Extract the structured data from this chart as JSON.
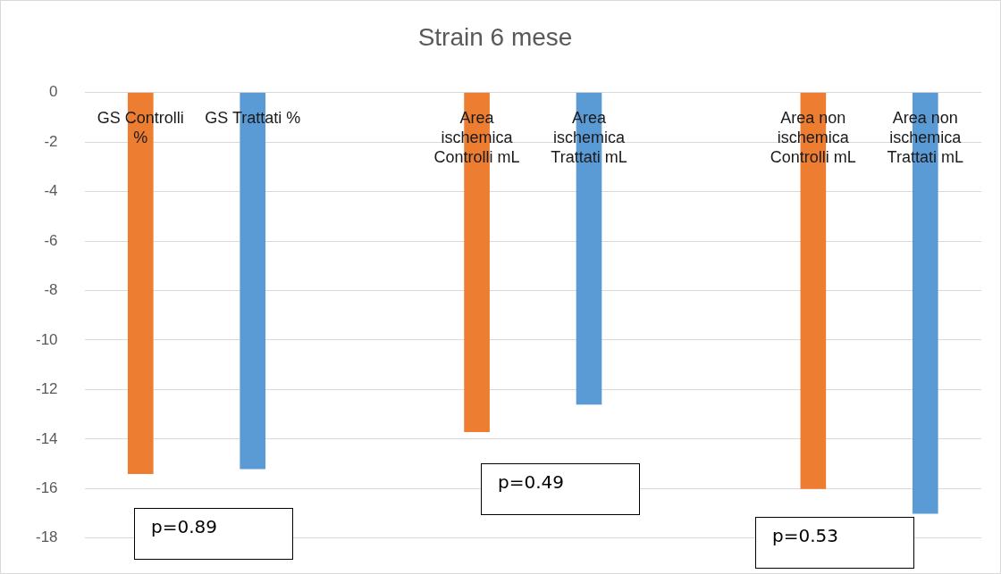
{
  "chart_data": {
    "type": "bar",
    "title": "Strain 6 mese",
    "categories": [
      "GS Controlli %",
      "GS Trattati %",
      null,
      "Area ischemica Controlli mL",
      "Area ischemica Trattati mL",
      null,
      "Area non ischemica Controlli mL",
      "Area non ischemica Trattati mL"
    ],
    "values": [
      -15.4,
      -15.2,
      null,
      -13.7,
      -12.6,
      null,
      -16.0,
      -17.0
    ],
    "colors": [
      "#ed7d31",
      "#5b9bd5",
      "#5b9bd5",
      "#ed7d31",
      "#5b9bd5",
      "#5b9bd5",
      "#ed7d31",
      "#5b9bd5"
    ],
    "ylim": [
      -18,
      0
    ],
    "yticks": [
      -18,
      -16,
      -14,
      -12,
      -10,
      -8,
      -6,
      -4,
      -2,
      0
    ],
    "grid": "y",
    "legend": false,
    "annotations": [
      "p=0.89",
      "p=0.49",
      "p=0.53"
    ]
  }
}
